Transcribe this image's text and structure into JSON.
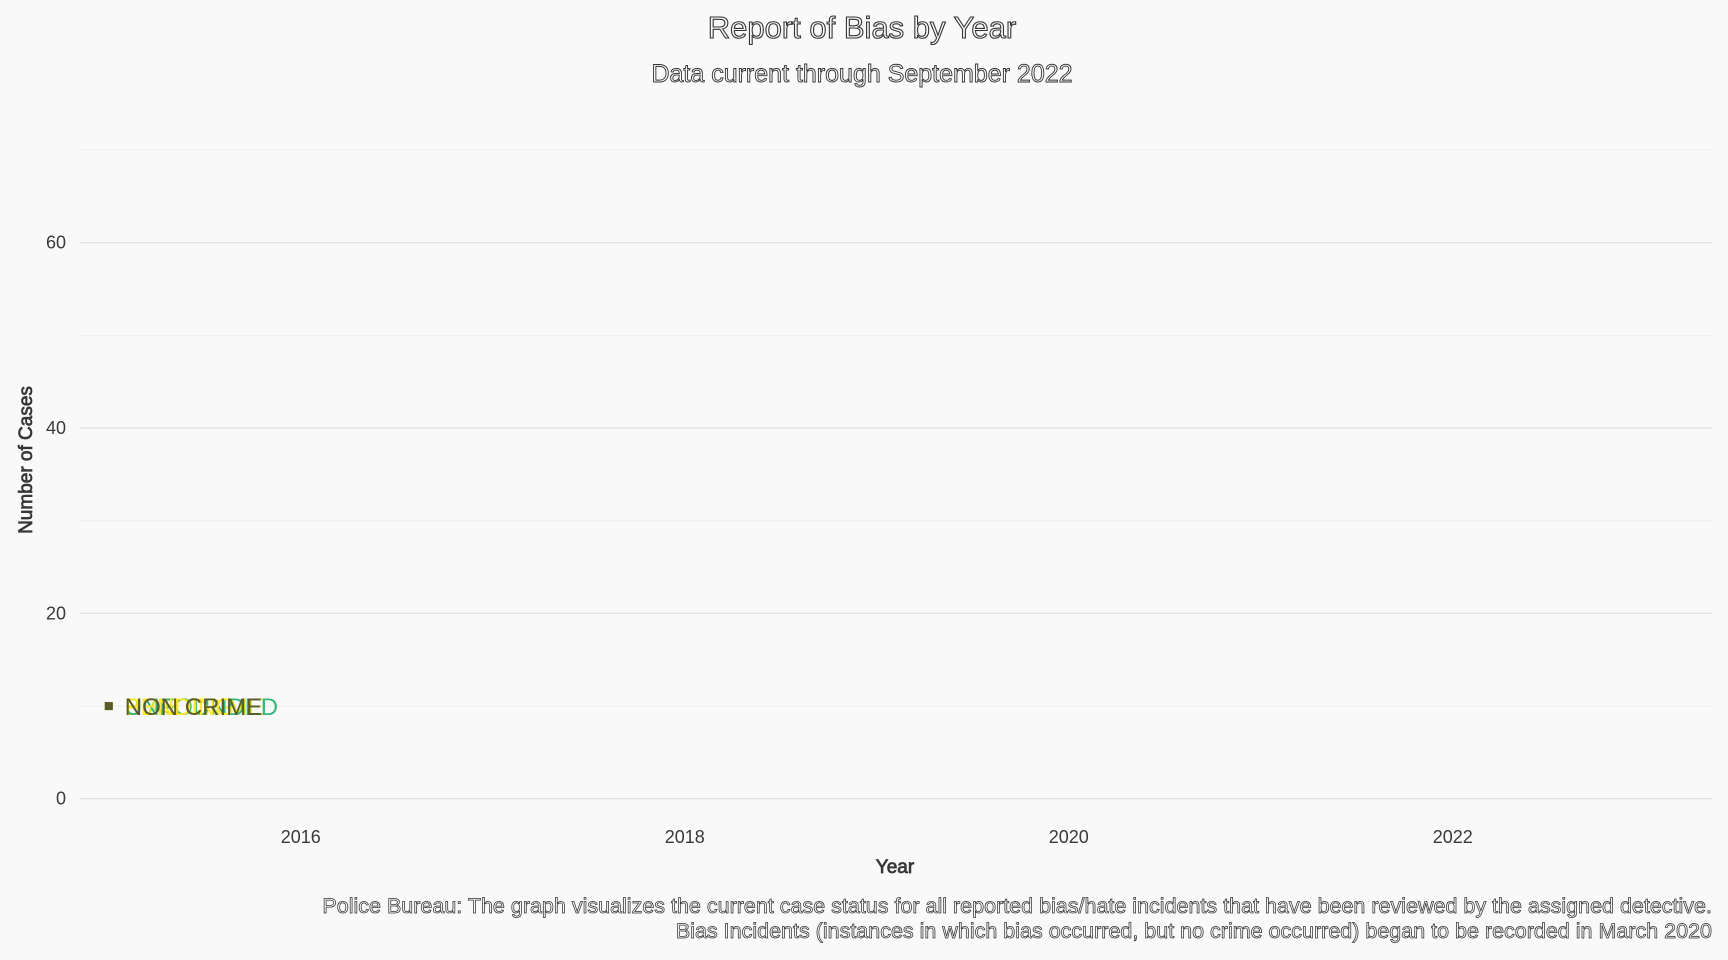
{
  "chart_data": {
    "type": "scatter",
    "title": "Report of Bias by Year",
    "subtitle": "Data current through September 2022",
    "xlabel": "Year",
    "ylabel": "Number of Cases",
    "xlim": [
      2014.85,
      2023.35
    ],
    "ylim": [
      -1,
      70
    ],
    "x_ticks": [
      2016,
      2018,
      2020,
      2022
    ],
    "y_ticks": [
      0,
      20,
      40,
      60
    ],
    "y_minor": [
      10,
      30,
      50,
      70
    ],
    "grid": true,
    "legend": "none",
    "caption": [
      "Police Bureau: The graph visualizes the current case status for all reported bias/hate incidents that have been reviewed by the assigned detective.",
      "Bias Incidents (instances in which bias occurred, but no crime occurred) began to be recorded in March 2020"
    ],
    "series": [
      {
        "name": "BIAS CRIME",
        "color": "#d4e21a",
        "points": [
          {
            "x": 2015,
            "y": 10
          }
        ]
      },
      {
        "name": "UNFOUNDED",
        "color": "#35b779",
        "points": [
          {
            "x": 2015,
            "y": 10
          }
        ]
      },
      {
        "name": "PENDING",
        "color": "#fde725",
        "points": [
          {
            "x": 2015,
            "y": 10
          }
        ]
      },
      {
        "name": "NON CRIME",
        "color": "#5a5a2a",
        "points": [
          {
            "x": 2015,
            "y": 10
          }
        ]
      }
    ]
  }
}
